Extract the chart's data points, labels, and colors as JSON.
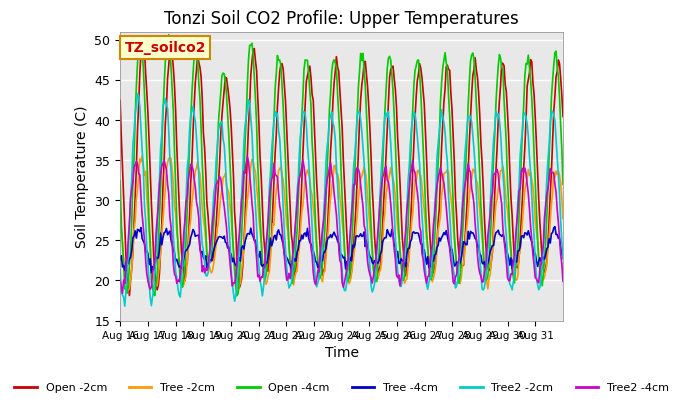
{
  "title": "Tonzi Soil CO2 Profile: Upper Temperatures",
  "xlabel": "Time",
  "ylabel": "Soil Temperature (C)",
  "ylim": [
    15,
    51
  ],
  "yticks": [
    15,
    20,
    25,
    30,
    35,
    40,
    45,
    50
  ],
  "annotation_text": "TZ_soilco2",
  "annotation_bg": "#ffffcc",
  "annotation_border": "#cc8800",
  "annotation_text_color": "#cc0000",
  "bg_color": "#ffffff",
  "plot_bg_color": "#e8e8e8",
  "grid_color": "#ffffff",
  "series": [
    {
      "label": "Open -2cm",
      "color": "#cc0000",
      "lw": 1.2,
      "base_amp": 13,
      "base_mid": 34,
      "phase": 0.0,
      "seed": 1
    },
    {
      "label": "Tree -2cm",
      "color": "#ff9900",
      "lw": 1.2,
      "base_amp": 7,
      "base_mid": 27,
      "phase": 0.05,
      "seed": 2
    },
    {
      "label": "Open -4cm",
      "color": "#00cc00",
      "lw": 1.2,
      "base_amp": 14,
      "base_mid": 34,
      "phase": 0.1,
      "seed": 3
    },
    {
      "label": "Tree -4cm",
      "color": "#0000cc",
      "lw": 1.2,
      "base_amp": 2,
      "base_mid": 24,
      "phase": 0.15,
      "seed": 4
    },
    {
      "label": "Tree2 -2cm",
      "color": "#00cccc",
      "lw": 1.2,
      "base_amp": 11,
      "base_mid": 30,
      "phase": 0.2,
      "seed": 5
    },
    {
      "label": "Tree2 -4cm",
      "color": "#cc00cc",
      "lw": 1.2,
      "base_amp": 7,
      "base_mid": 27,
      "phase": 0.25,
      "seed": 6
    }
  ],
  "xtick_labels": [
    "Aug 16",
    "Aug 17",
    "Aug 18",
    "Aug 19",
    "Aug 20",
    "Aug 21",
    "Aug 22",
    "Aug 23",
    "Aug 24",
    "Aug 25",
    "Aug 26",
    "Aug 27",
    "Aug 28",
    "Aug 29",
    "Aug 30",
    "Aug 31"
  ],
  "legend_ncol": 6
}
